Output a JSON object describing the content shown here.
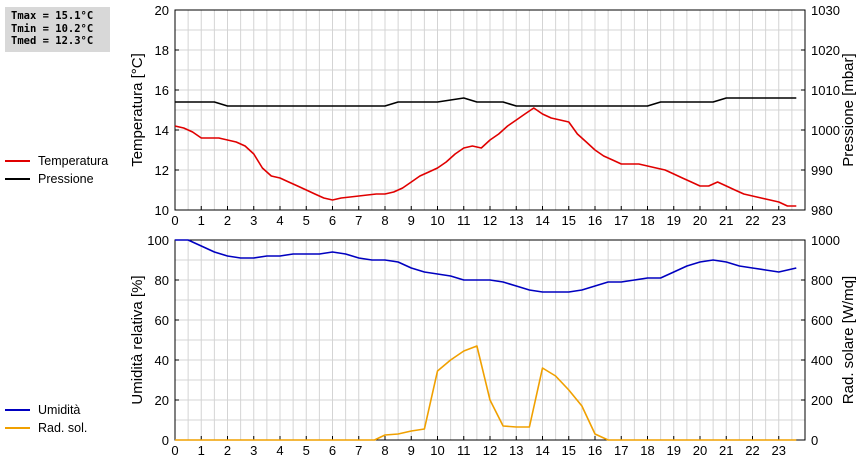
{
  "stats": {
    "tmax": "Tmax = 15.1°C",
    "tmin": "Tmin = 10.2°C",
    "tmed": "Tmed = 12.3°C"
  },
  "legend_top": [
    {
      "label": "Temperatura",
      "color": "#e00000"
    },
    {
      "label": "Pressione",
      "color": "#000000"
    }
  ],
  "legend_bottom": [
    {
      "label": "Umidità",
      "color": "#0000c0"
    },
    {
      "label": "Rad. sol.",
      "color": "#f0a000"
    }
  ],
  "chart_data": [
    {
      "type": "line",
      "ylabel": "Temperatura [°C]",
      "y2label": "Pressione [mbar]",
      "xlim": [
        0,
        24
      ],
      "ylim": [
        10,
        20
      ],
      "y2lim": [
        980,
        1030
      ],
      "xticks": [
        "0",
        "1",
        "2",
        "3",
        "4",
        "5",
        "6",
        "7",
        "8",
        "9",
        "10",
        "11",
        "12",
        "13",
        "14",
        "15",
        "16",
        "17",
        "18",
        "19",
        "20",
        "21",
        "22",
        "23"
      ],
      "yticks": [
        "10",
        "12",
        "14",
        "16",
        "18",
        "20"
      ],
      "y2ticks": [
        "980",
        "990",
        "1000",
        "1010",
        "1020",
        "1030"
      ],
      "grid": true,
      "series": [
        {
          "name": "Temperatura",
          "axis": "left",
          "color": "#e00000",
          "x": [
            0,
            0.33,
            0.67,
            1,
            1.33,
            1.67,
            2,
            2.33,
            2.67,
            3,
            3.33,
            3.67,
            4,
            4.33,
            4.67,
            5,
            5.33,
            5.67,
            6,
            6.33,
            6.67,
            7,
            7.33,
            7.67,
            8,
            8.33,
            8.67,
            9,
            9.33,
            9.67,
            10,
            10.33,
            10.67,
            11,
            11.33,
            11.67,
            12,
            12.33,
            12.67,
            13,
            13.33,
            13.67,
            14,
            14.33,
            14.67,
            15,
            15.33,
            15.67,
            16,
            16.33,
            16.67,
            17,
            17.33,
            17.67,
            18,
            18.33,
            18.67,
            19,
            19.33,
            19.67,
            20,
            20.33,
            20.67,
            21,
            21.33,
            21.67,
            22,
            22.33,
            22.67,
            23,
            23.33,
            23.67
          ],
          "y": [
            14.2,
            14.1,
            13.9,
            13.6,
            13.6,
            13.6,
            13.5,
            13.4,
            13.2,
            12.8,
            12.1,
            11.7,
            11.6,
            11.4,
            11.2,
            11.0,
            10.8,
            10.6,
            10.5,
            10.6,
            10.65,
            10.7,
            10.75,
            10.8,
            10.8,
            10.9,
            11.1,
            11.4,
            11.7,
            11.9,
            12.1,
            12.4,
            12.8,
            13.1,
            13.2,
            13.1,
            13.5,
            13.8,
            14.2,
            14.5,
            14.8,
            15.1,
            14.8,
            14.6,
            14.5,
            14.4,
            13.8,
            13.4,
            13.0,
            12.7,
            12.5,
            12.3,
            12.3,
            12.3,
            12.2,
            12.1,
            12.0,
            11.8,
            11.6,
            11.4,
            11.2,
            11.2,
            11.4,
            11.2,
            11.0,
            10.8,
            10.7,
            10.6,
            10.5,
            10.4,
            10.2,
            10.2
          ]
        },
        {
          "name": "Pressione",
          "axis": "right",
          "color": "#000000",
          "x": [
            0,
            1,
            1.5,
            2,
            2.5,
            3,
            4,
            5,
            6,
            7,
            8,
            8.5,
            9,
            10,
            10.5,
            11,
            11.5,
            12,
            12.5,
            13,
            13.5,
            14,
            15,
            16,
            17,
            18,
            18.5,
            19,
            20,
            20.5,
            21,
            22,
            23,
            23.67
          ],
          "y": [
            1007,
            1007,
            1007,
            1006,
            1006,
            1006,
            1006,
            1006,
            1006,
            1006,
            1006,
            1007,
            1007,
            1007,
            1007.5,
            1008,
            1007,
            1007,
            1007,
            1006,
            1006,
            1006,
            1006,
            1006,
            1006,
            1006,
            1007,
            1007,
            1007,
            1007,
            1008,
            1008,
            1008,
            1008
          ]
        }
      ]
    },
    {
      "type": "line",
      "ylabel": "Umidità relativa [%]",
      "y2label": "Rad. solare [W/mq]",
      "xlim": [
        0,
        24
      ],
      "ylim": [
        0,
        100
      ],
      "y2lim": [
        0,
        1000
      ],
      "xticks": [
        "0",
        "1",
        "2",
        "3",
        "4",
        "5",
        "6",
        "7",
        "8",
        "9",
        "10",
        "11",
        "12",
        "13",
        "14",
        "15",
        "16",
        "17",
        "18",
        "19",
        "20",
        "21",
        "22",
        "23"
      ],
      "yticks": [
        "0",
        "20",
        "40",
        "60",
        "80",
        "100"
      ],
      "y2ticks": [
        "0",
        "200",
        "400",
        "600",
        "800",
        "1000"
      ],
      "grid": true,
      "series": [
        {
          "name": "Umidità",
          "axis": "left",
          "color": "#0000c0",
          "x": [
            0,
            0.5,
            1,
            1.5,
            2,
            2.5,
            3,
            3.5,
            4,
            4.5,
            5,
            5.5,
            6,
            6.5,
            7,
            7.5,
            8,
            8.5,
            9,
            9.5,
            10,
            10.5,
            11,
            11.5,
            12,
            12.5,
            13,
            13.5,
            14,
            14.5,
            15,
            15.5,
            16,
            16.5,
            17,
            17.5,
            18,
            18.5,
            19,
            19.5,
            20,
            20.5,
            21,
            21.5,
            22,
            22.5,
            23,
            23.67
          ],
          "y": [
            100,
            100,
            97,
            94,
            92,
            91,
            91,
            92,
            92,
            93,
            93,
            93,
            94,
            93,
            91,
            90,
            90,
            89,
            86,
            84,
            83,
            82,
            80,
            80,
            80,
            79,
            77,
            75,
            74,
            74,
            74,
            75,
            77,
            79,
            79,
            80,
            81,
            81,
            84,
            87,
            89,
            90,
            89,
            87,
            86,
            85,
            84,
            86
          ]
        },
        {
          "name": "Rad. sol.",
          "axis": "right",
          "color": "#f0a000",
          "x": [
            0,
            0.5,
            1,
            2,
            3,
            4,
            5,
            6,
            7,
            7.6,
            8,
            8.5,
            9,
            9.5,
            10,
            10.5,
            11,
            11.5,
            12,
            12.5,
            13,
            13.5,
            14,
            14.5,
            15,
            15.5,
            16,
            16.5,
            17,
            18,
            19,
            20,
            21,
            22,
            23,
            23.67
          ],
          "y": [
            0,
            0,
            0,
            0,
            0,
            0,
            0,
            0,
            0,
            0,
            25,
            30,
            45,
            55,
            345,
            400,
            445,
            470,
            200,
            70,
            65,
            65,
            360,
            320,
            250,
            170,
            30,
            0,
            0,
            0,
            0,
            0,
            0,
            0,
            0,
            0
          ]
        }
      ]
    }
  ]
}
